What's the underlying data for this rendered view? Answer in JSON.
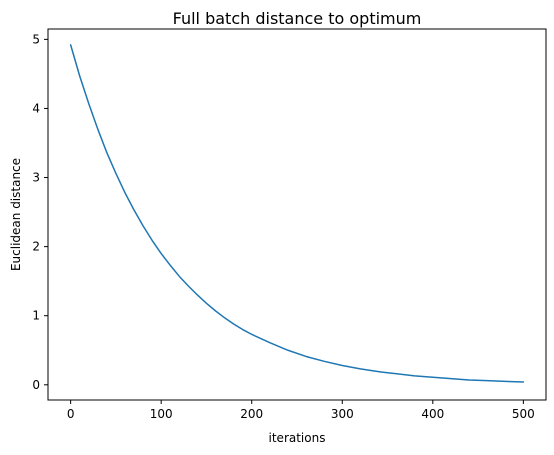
{
  "chart_data": {
    "type": "line",
    "title": "Full batch distance to optimum",
    "xlabel": "iterations",
    "ylabel": "Euclidean distance",
    "xlim": [
      -25,
      525
    ],
    "ylim": [
      -0.22,
      5.15
    ],
    "xticks": [
      0,
      100,
      200,
      300,
      400,
      500
    ],
    "yticks": [
      0,
      1,
      2,
      3,
      4,
      5
    ],
    "grid": false,
    "series": [
      {
        "color": "#1f77b4",
        "x": [
          0,
          10,
          20,
          30,
          40,
          50,
          60,
          70,
          80,
          90,
          100,
          110,
          120,
          130,
          140,
          150,
          160,
          170,
          180,
          190,
          200,
          220,
          240,
          260,
          280,
          300,
          320,
          340,
          360,
          380,
          400,
          420,
          440,
          460,
          480,
          500
        ],
        "y": [
          4.92,
          4.47,
          4.07,
          3.7,
          3.36,
          3.06,
          2.78,
          2.53,
          2.3,
          2.09,
          1.9,
          1.73,
          1.57,
          1.43,
          1.3,
          1.18,
          1.07,
          0.97,
          0.88,
          0.8,
          0.73,
          0.61,
          0.5,
          0.41,
          0.34,
          0.28,
          0.23,
          0.19,
          0.16,
          0.13,
          0.11,
          0.09,
          0.07,
          0.06,
          0.05,
          0.04
        ]
      }
    ]
  }
}
